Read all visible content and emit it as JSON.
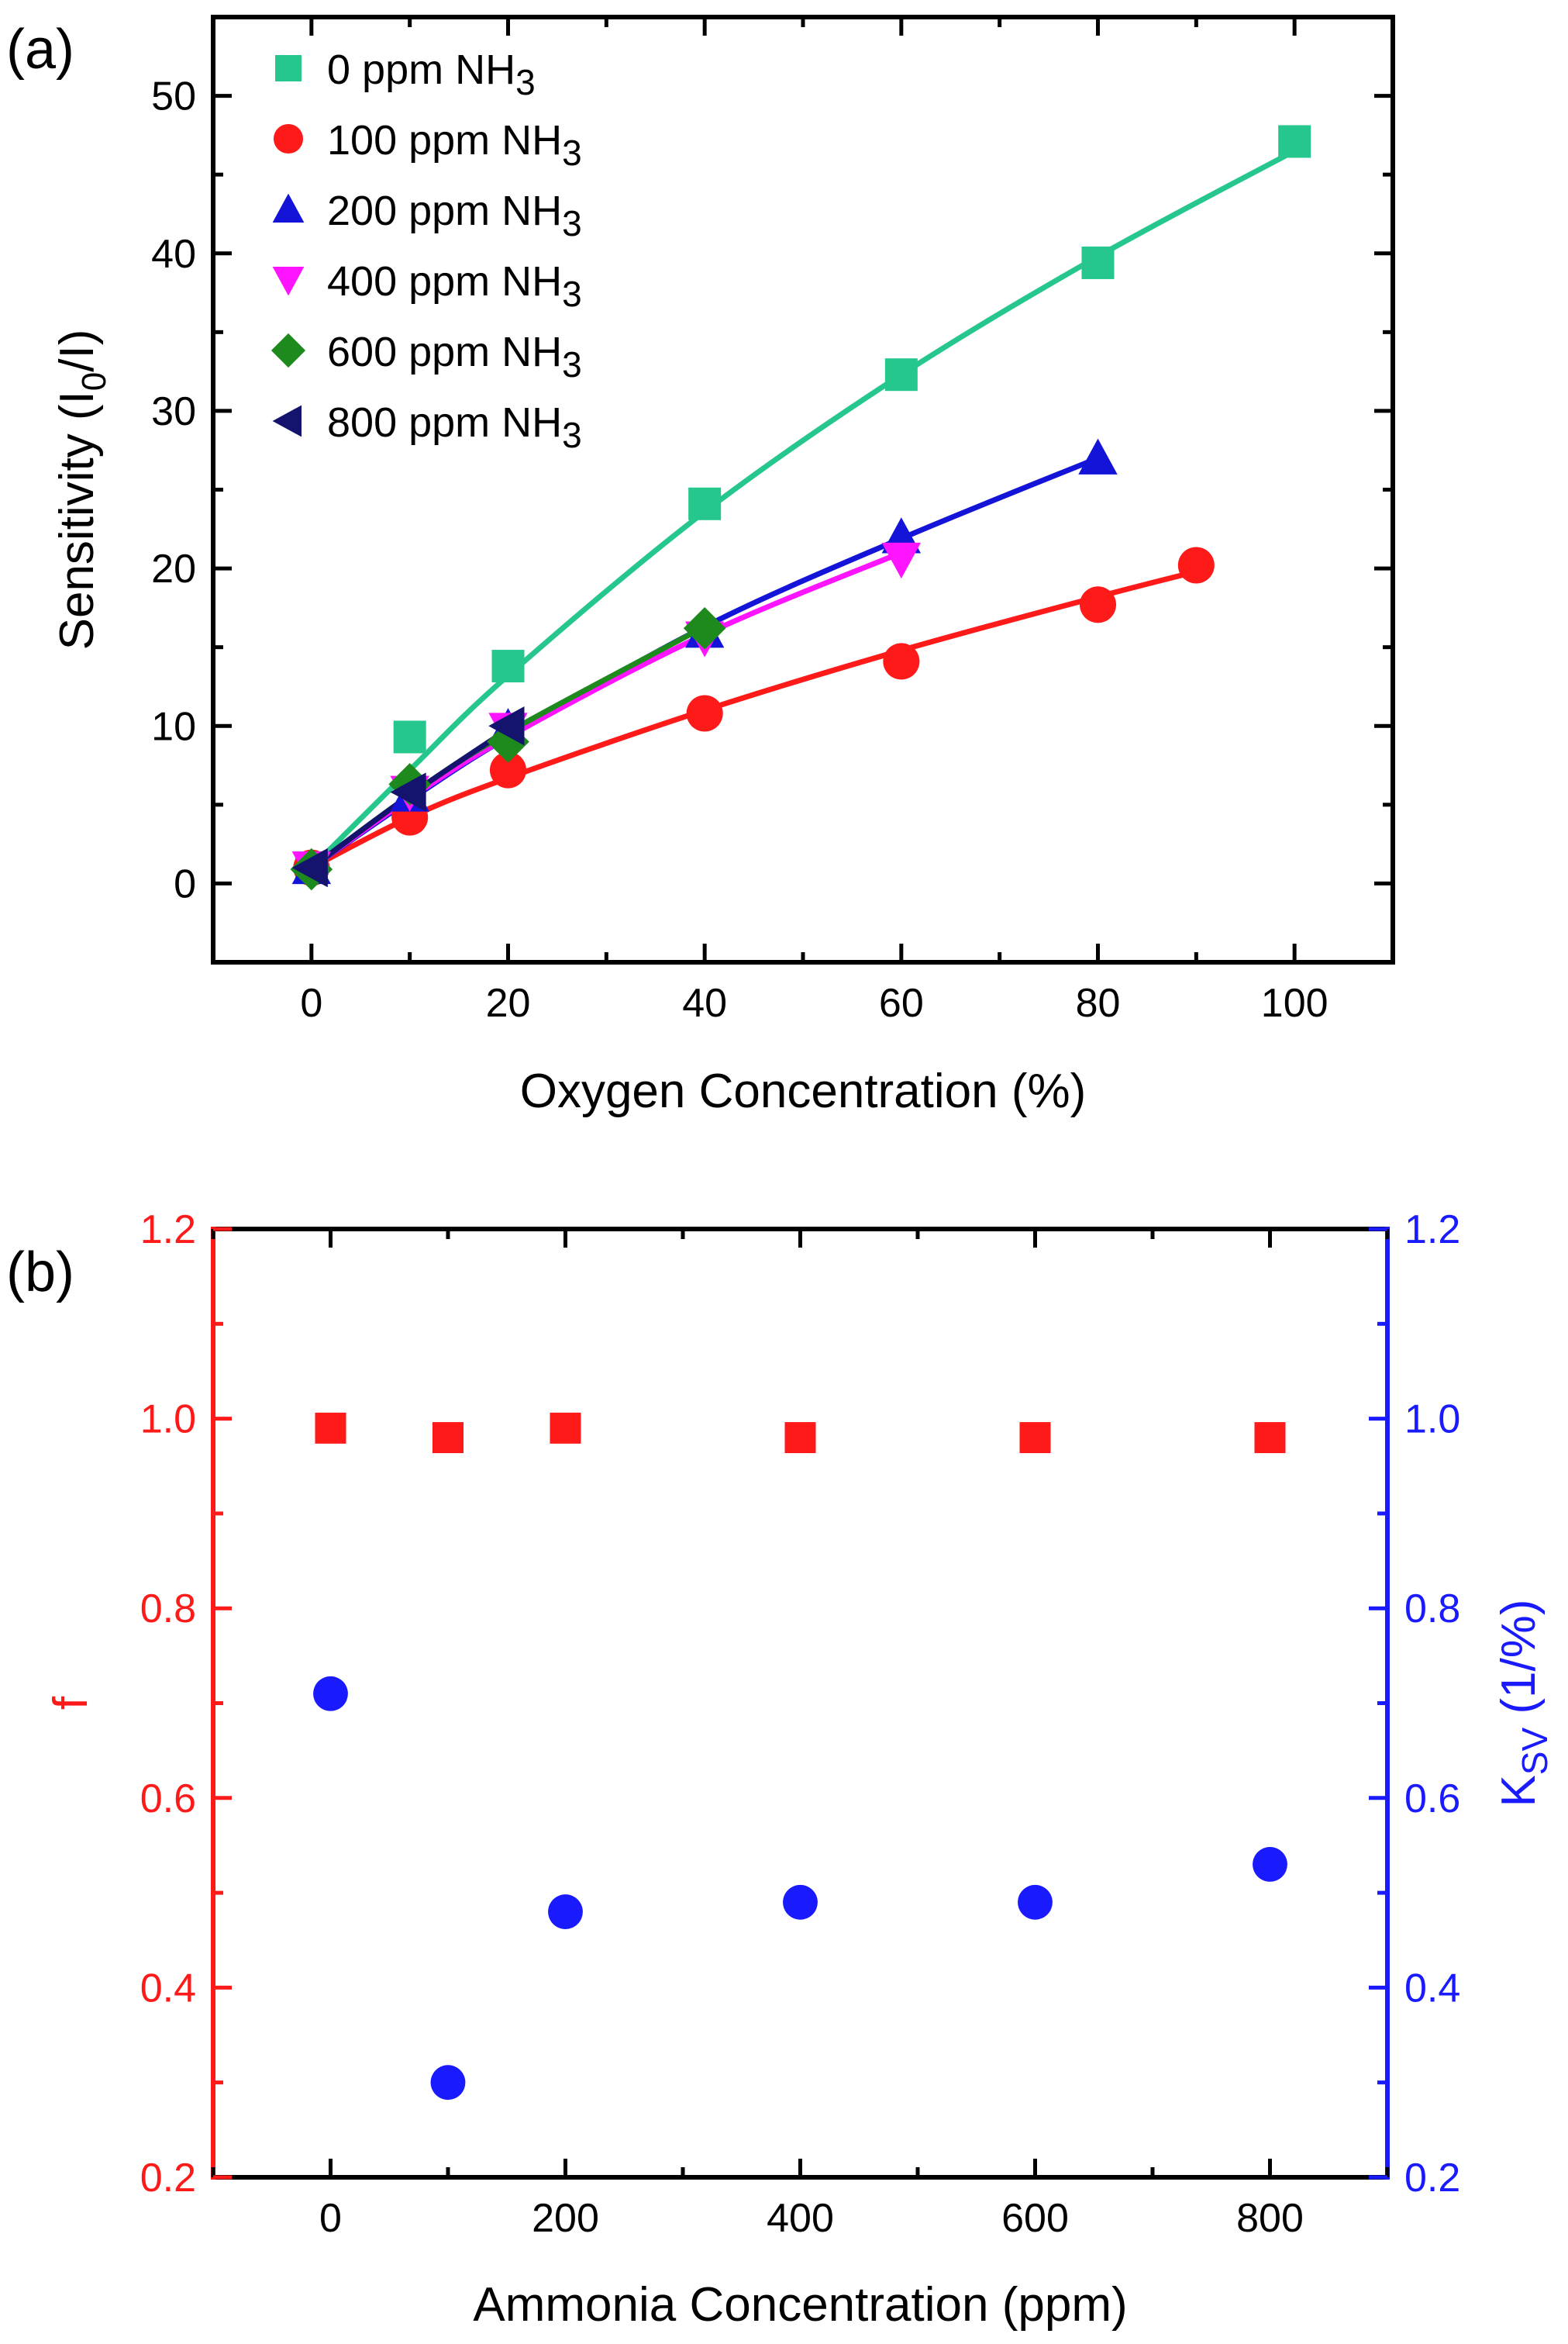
{
  "chart_data": [
    {
      "panel_label": "(a)",
      "type": "scatter",
      "xlabel": "Oxygen Concentration (%)",
      "ylabel": {
        "main": "Sensitivity (I",
        "sub": "0",
        "rest": "/I)"
      },
      "xlim": [
        -10,
        110
      ],
      "ylim": [
        -5,
        55
      ],
      "xticks": [
        0,
        20,
        40,
        60,
        80,
        100
      ],
      "yticks": [
        0,
        10,
        20,
        30,
        40,
        50
      ],
      "legend_position": "top-left",
      "series": [
        {
          "name": "0 ppm NH",
          "name_sub": "3",
          "marker": "square",
          "color": "#26c78d",
          "x": [
            0,
            10,
            20,
            40,
            60,
            80,
            100
          ],
          "y": [
            1.0,
            9.3,
            13.8,
            24.1,
            32.3,
            39.4,
            47.1
          ],
          "fit": [
            [
              0,
              1.0
            ],
            [
              10,
              7.2
            ],
            [
              20,
              13.2
            ],
            [
              40,
              23.6
            ],
            [
              60,
              32.3
            ],
            [
              80,
              39.8
            ],
            [
              100,
              46.5
            ]
          ]
        },
        {
          "name": "100 ppm NH",
          "name_sub": "3",
          "marker": "circle",
          "color": "#ff1a1a",
          "x": [
            0,
            10,
            20,
            40,
            60,
            80,
            90
          ],
          "y": [
            1.0,
            4.2,
            7.2,
            10.8,
            14.1,
            17.7,
            20.2
          ],
          "fit": [
            [
              0,
              1.0
            ],
            [
              10,
              4.2
            ],
            [
              20,
              6.7
            ],
            [
              40,
              11.0
            ],
            [
              60,
              14.8
            ],
            [
              80,
              18.2
            ],
            [
              90,
              19.8
            ]
          ]
        },
        {
          "name": "200 ppm NH",
          "name_sub": "3",
          "marker": "triangle-up",
          "color": "#1414d9",
          "x": [
            0,
            10,
            20,
            40,
            60,
            80
          ],
          "y": [
            1.0,
            5.6,
            9.9,
            16.0,
            22.0,
            27.0
          ],
          "fit": [
            [
              0,
              1.0
            ],
            [
              10,
              5.3
            ],
            [
              20,
              9.3
            ],
            [
              40,
              16.3
            ],
            [
              60,
              21.9
            ],
            [
              80,
              27.0
            ]
          ]
        },
        {
          "name": "400 ppm NH",
          "name_sub": "3",
          "marker": "triangle-down",
          "color": "#ff14ff",
          "x": [
            0,
            10,
            20,
            40,
            60
          ],
          "y": [
            1.0,
            5.8,
            9.8,
            15.6,
            20.6
          ],
          "fit": [
            [
              0,
              1.0
            ],
            [
              10,
              5.4
            ],
            [
              20,
              9.3
            ],
            [
              40,
              15.8
            ],
            [
              60,
              21.0
            ]
          ]
        },
        {
          "name": "600 ppm NH",
          "name_sub": "3",
          "marker": "diamond",
          "color": "#1e8a1e",
          "x": [
            0,
            10,
            20,
            40
          ],
          "y": [
            0.9,
            6.3,
            9.0,
            16.2
          ],
          "fit": [
            [
              0,
              1.0
            ],
            [
              10,
              5.6
            ],
            [
              20,
              9.6
            ],
            [
              40,
              16.3
            ]
          ]
        },
        {
          "name": "800 ppm NH",
          "name_sub": "3",
          "marker": "triangle-left",
          "color": "#14146e",
          "x": [
            0,
            10,
            20
          ],
          "y": [
            1.0,
            5.8,
            10.0
          ],
          "fit": [
            [
              0,
              1.0
            ],
            [
              10,
              5.6
            ],
            [
              20,
              9.8
            ]
          ]
        }
      ]
    },
    {
      "panel_label": "(b)",
      "type": "scatter",
      "xlabel": "Ammonia Concentration (ppm)",
      "ylabel_left": "f",
      "ylabel_right": {
        "main": "K",
        "sub": "SV",
        "rest": " (1/%)"
      },
      "xlim": [
        -100,
        900
      ],
      "ylim_left": [
        0.2,
        1.2
      ],
      "ylim_right": [
        0.2,
        1.2
      ],
      "xticks": [
        0,
        200,
        400,
        600,
        800
      ],
      "yticks": [
        "0.2",
        "0.4",
        "0.6",
        "0.8",
        "1.0",
        "1.2"
      ],
      "left_color": "#ff1a1a",
      "right_color": "#1a1aff",
      "series": [
        {
          "axis": "left",
          "marker": "square",
          "color": "#ff1a1a",
          "x": [
            0,
            100,
            200,
            400,
            600,
            800
          ],
          "y": [
            0.99,
            0.98,
            0.99,
            0.98,
            0.98,
            0.98
          ]
        },
        {
          "axis": "right",
          "marker": "circle",
          "color": "#1a1aff",
          "x": [
            0,
            100,
            200,
            400,
            600,
            800
          ],
          "y": [
            0.71,
            0.3,
            0.48,
            0.49,
            0.49,
            0.53
          ]
        }
      ]
    }
  ]
}
